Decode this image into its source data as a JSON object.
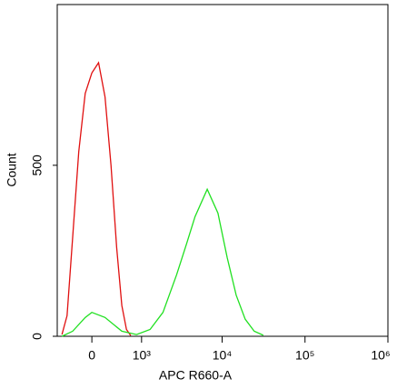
{
  "chart_data": {
    "type": "line",
    "xlabel": "APC R660-A",
    "ylabel": "Count",
    "xscale": "asinh",
    "linear_width": 537,
    "xlim": [
      -600,
      1000000
    ],
    "xticks": [
      0,
      {
        "value": 1000,
        "label": "10³"
      },
      {
        "value": 10000,
        "label": "10⁴"
      },
      {
        "value": 100000,
        "label": "10⁵"
      },
      {
        "value": 1000000,
        "label": "10⁶"
      }
    ],
    "ylim": [
      0,
      970
    ],
    "yticks": [
      0,
      500
    ],
    "series": [
      {
        "color": "#e01010",
        "x": [
          -500,
          -400,
          -300,
          -200,
          -100,
          0,
          100,
          200,
          300,
          400,
          500,
          600,
          700
        ],
        "values": [
          5,
          60,
          290,
          540,
          710,
          770,
          800,
          700,
          500,
          260,
          90,
          20,
          2
        ]
      },
      {
        "color": "#20e020",
        "x": [
          -500,
          -300,
          -100,
          0,
          200,
          500,
          850,
          1300,
          1900,
          2800,
          3700,
          4700,
          6600,
          8900,
          11500,
          14800,
          19000,
          24400,
          31400
        ],
        "values": [
          0,
          15,
          55,
          70,
          55,
          15,
          5,
          20,
          70,
          180,
          270,
          350,
          430,
          360,
          230,
          120,
          50,
          15,
          3
        ]
      }
    ]
  }
}
